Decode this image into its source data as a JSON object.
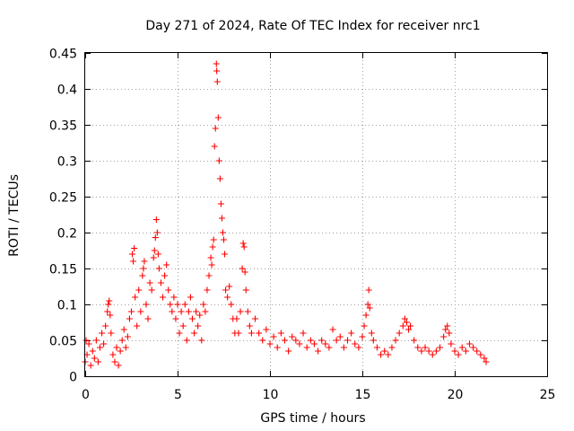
{
  "chart_data": {
    "type": "scatter",
    "title": "Day 271 of 2024, Rate Of TEC Index for receiver nrc1",
    "xlabel": "GPS time / hours",
    "ylabel": "ROTI / TECUs",
    "xlim": [
      0,
      25
    ],
    "ylim": [
      0,
      0.45
    ],
    "x_ticks": [
      0,
      5,
      10,
      15,
      20,
      25
    ],
    "x_tick_labels": [
      "0",
      "5",
      "10",
      "15",
      "20",
      "25"
    ],
    "y_ticks": [
      0,
      0.05,
      0.1,
      0.15,
      0.2,
      0.25,
      0.3,
      0.35,
      0.4,
      0.45
    ],
    "y_tick_labels": [
      "0",
      "0.05",
      "0.1",
      "0.15",
      "0.2",
      "0.25",
      "0.3",
      "0.35",
      "0.4",
      "0.45"
    ],
    "grid": true,
    "marker": "+",
    "marker_color": "#ff0000",
    "series": [
      {
        "name": "ROTI",
        "points": [
          [
            0.0,
            0.02
          ],
          [
            0.05,
            0.05
          ],
          [
            0.1,
            0.03
          ],
          [
            0.2,
            0.045
          ],
          [
            0.3,
            0.015
          ],
          [
            0.4,
            0.035
          ],
          [
            0.5,
            0.025
          ],
          [
            0.6,
            0.05
          ],
          [
            0.7,
            0.02
          ],
          [
            0.8,
            0.04
          ],
          [
            0.9,
            0.06
          ],
          [
            1.0,
            0.045
          ],
          [
            1.1,
            0.07
          ],
          [
            1.2,
            0.09
          ],
          [
            1.25,
            0.1
          ],
          [
            1.3,
            0.105
          ],
          [
            1.35,
            0.085
          ],
          [
            1.4,
            0.06
          ],
          [
            1.5,
            0.03
          ],
          [
            1.6,
            0.02
          ],
          [
            1.7,
            0.04
          ],
          [
            1.8,
            0.015
          ],
          [
            1.9,
            0.035
          ],
          [
            2.0,
            0.05
          ],
          [
            2.1,
            0.065
          ],
          [
            2.2,
            0.04
          ],
          [
            2.3,
            0.055
          ],
          [
            2.4,
            0.08
          ],
          [
            2.5,
            0.09
          ],
          [
            2.55,
            0.17
          ],
          [
            2.6,
            0.16
          ],
          [
            2.65,
            0.178
          ],
          [
            2.7,
            0.11
          ],
          [
            2.8,
            0.07
          ],
          [
            2.9,
            0.12
          ],
          [
            3.0,
            0.09
          ],
          [
            3.1,
            0.14
          ],
          [
            3.15,
            0.15
          ],
          [
            3.2,
            0.16
          ],
          [
            3.3,
            0.1
          ],
          [
            3.4,
            0.08
          ],
          [
            3.5,
            0.13
          ],
          [
            3.6,
            0.12
          ],
          [
            3.7,
            0.165
          ],
          [
            3.75,
            0.175
          ],
          [
            3.8,
            0.193
          ],
          [
            3.85,
            0.218
          ],
          [
            3.9,
            0.2
          ],
          [
            3.95,
            0.17
          ],
          [
            4.0,
            0.15
          ],
          [
            4.1,
            0.13
          ],
          [
            4.2,
            0.11
          ],
          [
            4.3,
            0.14
          ],
          [
            4.4,
            0.155
          ],
          [
            4.5,
            0.12
          ],
          [
            4.6,
            0.1
          ],
          [
            4.7,
            0.09
          ],
          [
            4.8,
            0.11
          ],
          [
            4.9,
            0.08
          ],
          [
            5.0,
            0.1
          ],
          [
            5.1,
            0.06
          ],
          [
            5.2,
            0.09
          ],
          [
            5.3,
            0.07
          ],
          [
            5.4,
            0.1
          ],
          [
            5.5,
            0.05
          ],
          [
            5.6,
            0.09
          ],
          [
            5.7,
            0.11
          ],
          [
            5.8,
            0.08
          ],
          [
            5.9,
            0.06
          ],
          [
            6.0,
            0.09
          ],
          [
            6.1,
            0.07
          ],
          [
            6.2,
            0.085
          ],
          [
            6.3,
            0.05
          ],
          [
            6.4,
            0.1
          ],
          [
            6.5,
            0.09
          ],
          [
            6.6,
            0.12
          ],
          [
            6.7,
            0.14
          ],
          [
            6.8,
            0.165
          ],
          [
            6.85,
            0.155
          ],
          [
            6.9,
            0.18
          ],
          [
            6.95,
            0.19
          ],
          [
            7.0,
            0.32
          ],
          [
            7.05,
            0.345
          ],
          [
            7.1,
            0.435
          ],
          [
            7.12,
            0.425
          ],
          [
            7.15,
            0.41
          ],
          [
            7.2,
            0.36
          ],
          [
            7.25,
            0.3
          ],
          [
            7.3,
            0.275
          ],
          [
            7.35,
            0.24
          ],
          [
            7.4,
            0.22
          ],
          [
            7.45,
            0.2
          ],
          [
            7.5,
            0.19
          ],
          [
            7.55,
            0.17
          ],
          [
            7.6,
            0.12
          ],
          [
            7.7,
            0.11
          ],
          [
            7.8,
            0.125
          ],
          [
            7.9,
            0.1
          ],
          [
            8.0,
            0.08
          ],
          [
            8.1,
            0.06
          ],
          [
            8.2,
            0.08
          ],
          [
            8.3,
            0.06
          ],
          [
            8.4,
            0.09
          ],
          [
            8.5,
            0.15
          ],
          [
            8.55,
            0.185
          ],
          [
            8.6,
            0.18
          ],
          [
            8.65,
            0.145
          ],
          [
            8.7,
            0.12
          ],
          [
            8.8,
            0.09
          ],
          [
            8.9,
            0.07
          ],
          [
            9.0,
            0.06
          ],
          [
            9.2,
            0.08
          ],
          [
            9.4,
            0.06
          ],
          [
            9.6,
            0.05
          ],
          [
            9.8,
            0.065
          ],
          [
            10.0,
            0.045
          ],
          [
            10.2,
            0.055
          ],
          [
            10.4,
            0.04
          ],
          [
            10.6,
            0.06
          ],
          [
            10.8,
            0.05
          ],
          [
            11.0,
            0.035
          ],
          [
            11.2,
            0.055
          ],
          [
            11.4,
            0.05
          ],
          [
            11.6,
            0.045
          ],
          [
            11.8,
            0.06
          ],
          [
            12.0,
            0.04
          ],
          [
            12.2,
            0.05
          ],
          [
            12.4,
            0.045
          ],
          [
            12.6,
            0.035
          ],
          [
            12.8,
            0.05
          ],
          [
            13.0,
            0.045
          ],
          [
            13.2,
            0.04
          ],
          [
            13.4,
            0.065
          ],
          [
            13.6,
            0.05
          ],
          [
            13.8,
            0.055
          ],
          [
            14.0,
            0.04
          ],
          [
            14.2,
            0.05
          ],
          [
            14.4,
            0.06
          ],
          [
            14.6,
            0.045
          ],
          [
            14.8,
            0.04
          ],
          [
            15.0,
            0.055
          ],
          [
            15.1,
            0.07
          ],
          [
            15.2,
            0.085
          ],
          [
            15.3,
            0.1
          ],
          [
            15.35,
            0.12
          ],
          [
            15.4,
            0.095
          ],
          [
            15.5,
            0.06
          ],
          [
            15.6,
            0.05
          ],
          [
            15.8,
            0.04
          ],
          [
            16.0,
            0.03
          ],
          [
            16.2,
            0.035
          ],
          [
            16.4,
            0.03
          ],
          [
            16.6,
            0.04
          ],
          [
            16.8,
            0.05
          ],
          [
            17.0,
            0.06
          ],
          [
            17.2,
            0.07
          ],
          [
            17.3,
            0.08
          ],
          [
            17.4,
            0.075
          ],
          [
            17.5,
            0.065
          ],
          [
            17.6,
            0.07
          ],
          [
            17.8,
            0.05
          ],
          [
            18.0,
            0.04
          ],
          [
            18.2,
            0.035
          ],
          [
            18.4,
            0.04
          ],
          [
            18.6,
            0.035
          ],
          [
            18.8,
            0.03
          ],
          [
            19.0,
            0.035
          ],
          [
            19.2,
            0.04
          ],
          [
            19.4,
            0.055
          ],
          [
            19.5,
            0.065
          ],
          [
            19.6,
            0.07
          ],
          [
            19.7,
            0.06
          ],
          [
            19.8,
            0.045
          ],
          [
            20.0,
            0.035
          ],
          [
            20.2,
            0.03
          ],
          [
            20.4,
            0.04
          ],
          [
            20.6,
            0.035
          ],
          [
            20.8,
            0.045
          ],
          [
            21.0,
            0.04
          ],
          [
            21.2,
            0.035
          ],
          [
            21.4,
            0.03
          ],
          [
            21.6,
            0.025
          ],
          [
            21.7,
            0.02
          ]
        ]
      }
    ]
  }
}
